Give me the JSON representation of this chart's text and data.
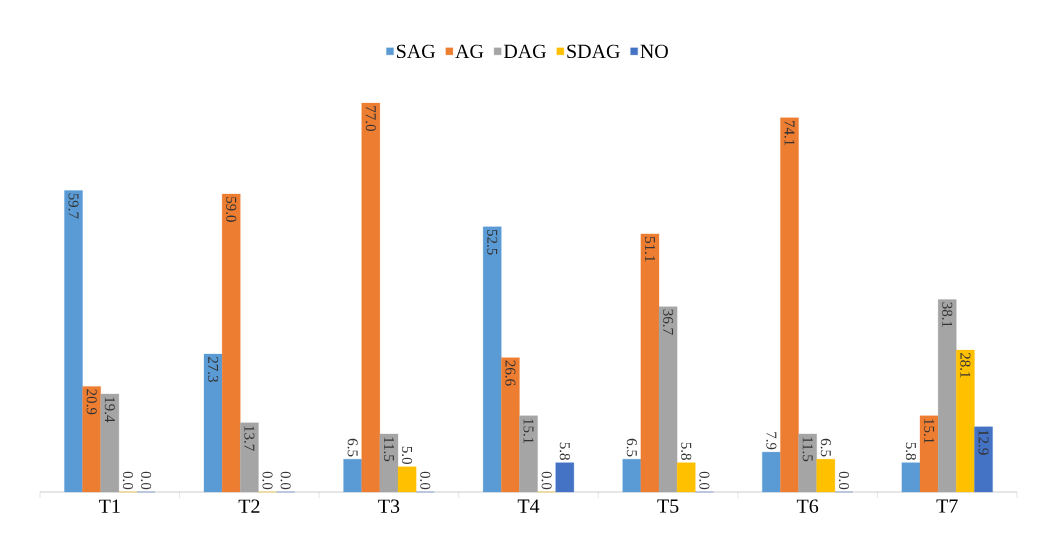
{
  "chart_data": {
    "type": "bar",
    "categories": [
      "T1",
      "T2",
      "T3",
      "T4",
      "T5",
      "T6",
      "T7"
    ],
    "series": [
      {
        "name": "SAG",
        "color": "#5b9bd5",
        "values": [
          59.7,
          27.3,
          6.5,
          52.5,
          6.5,
          7.9,
          5.8
        ],
        "value_labels": [
          "59.7",
          "27.3",
          "6.5",
          "52.5",
          "6.5",
          "7.9",
          "5.8"
        ]
      },
      {
        "name": "AG",
        "color": "#ed7d31",
        "values": [
          20.9,
          59.0,
          77.0,
          26.6,
          51.1,
          74.1,
          15.1
        ],
        "value_labels": [
          "20.9",
          "59.0",
          "77.0",
          "26.6",
          "51.1",
          "74.1",
          "15.1"
        ]
      },
      {
        "name": "DAG",
        "color": "#a5a5a5",
        "values": [
          19.4,
          13.7,
          11.5,
          15.1,
          36.7,
          11.5,
          38.1
        ],
        "value_labels": [
          "19.4",
          "13.7",
          "11.5",
          "15.1",
          "36.7",
          "11.5",
          "38.1"
        ]
      },
      {
        "name": "SDAG",
        "color": "#ffc000",
        "values": [
          0.0,
          0.0,
          5.0,
          0.0,
          5.8,
          6.5,
          28.1
        ],
        "value_labels": [
          "0.0",
          "0.0",
          "5.0",
          "0.0",
          "5.8",
          "6.5",
          "28.1"
        ]
      },
      {
        "name": "NO",
        "color": "#4472c4",
        "values": [
          0.0,
          0.0,
          0.0,
          5.8,
          0.0,
          0.0,
          12.9
        ],
        "value_labels": [
          "0.0",
          "0.0",
          "0.0",
          "5.8",
          "0.0",
          "0.0",
          "12.9"
        ]
      }
    ],
    "legend": "top"
  }
}
